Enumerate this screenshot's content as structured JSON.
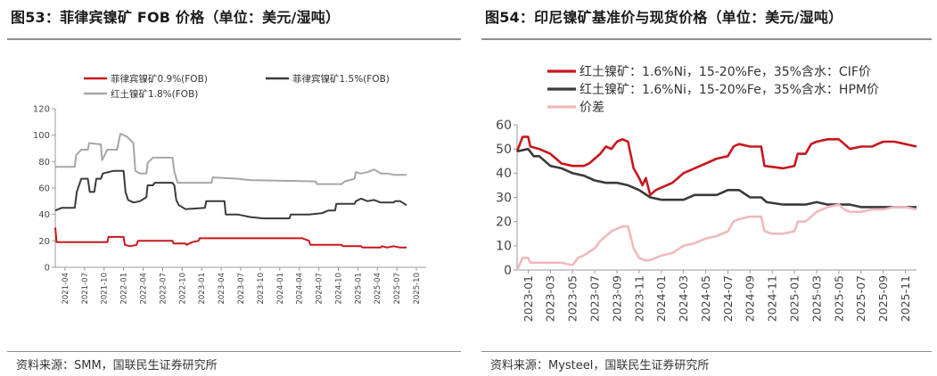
{
  "panel1": {
    "title": "图53：菲律宾镍矿 FOB 价格（单位：美元/湿吨）",
    "source": "资料来源：SMM，国联民生证券研究所"
  },
  "panel2": {
    "title": "图54：印尼镍矿基准价与现货价格（单位：美元/湿吨）",
    "source": "资料来源：Mysteel，国联民生证券研究所"
  },
  "chart_data": [
    {
      "type": "line",
      "title": "",
      "xlabel": "",
      "ylabel": "",
      "ylim": [
        0,
        120
      ],
      "yticks": [
        0,
        20,
        40,
        60,
        80,
        100,
        120
      ],
      "xlim": [
        0,
        57
      ],
      "categories": [
        "2021-04",
        "2021-07",
        "2021-10",
        "2022-01",
        "2022-04",
        "2022-07",
        "2022-10",
        "2023-01",
        "2023-04",
        "2023-07",
        "2023-10",
        "2024-01",
        "2024-04",
        "2024-07",
        "2024-10",
        "2025-01",
        "2025-04",
        "2025-07",
        "2025-10"
      ],
      "legend_placement": "top",
      "grid": false,
      "series": [
        {
          "name": "菲律宾镍矿0.9%(FOB)",
          "color": "#c8161d",
          "points": [
            [
              0,
              30
            ],
            [
              0.2,
              19
            ],
            [
              8,
              19
            ],
            [
              8.2,
              23
            ],
            [
              10.5,
              23
            ],
            [
              10.7,
              17
            ],
            [
              11.5,
              16
            ],
            [
              12.5,
              17
            ],
            [
              12.7,
              20
            ],
            [
              18,
              20
            ],
            [
              18.2,
              18
            ],
            [
              20,
              18
            ],
            [
              20.2,
              17
            ],
            [
              21,
              19
            ],
            [
              22,
              20
            ],
            [
              22.2,
              22
            ],
            [
              28,
              22
            ],
            [
              38,
              22
            ],
            [
              39,
              20
            ],
            [
              39.2,
              17
            ],
            [
              44,
              17
            ],
            [
              44.2,
              16
            ],
            [
              47,
              16
            ],
            [
              47.2,
              15
            ],
            [
              50,
              15
            ],
            [
              50.2,
              16
            ],
            [
              51,
              15
            ],
            [
              52,
              16
            ],
            [
              53,
              15
            ],
            [
              54,
              15
            ]
          ]
        },
        {
          "name": "菲律宾镍矿1.5%(FOB)",
          "color": "#3a3a3a",
          "points": [
            [
              0,
              43
            ],
            [
              1,
              45
            ],
            [
              3,
              45
            ],
            [
              3.3,
              57
            ],
            [
              4,
              67
            ],
            [
              5,
              67
            ],
            [
              5.3,
              57
            ],
            [
              6,
              57
            ],
            [
              6.3,
              67
            ],
            [
              7,
              67
            ],
            [
              7.3,
              71
            ],
            [
              9,
              73
            ],
            [
              10.5,
              73
            ],
            [
              10.8,
              57
            ],
            [
              11.2,
              51
            ],
            [
              12,
              49
            ],
            [
              13,
              50
            ],
            [
              14,
              53
            ],
            [
              14.2,
              62
            ],
            [
              15,
              62
            ],
            [
              15.3,
              64
            ],
            [
              18,
              64
            ],
            [
              18.3,
              62
            ],
            [
              18.6,
              51
            ],
            [
              19,
              47
            ],
            [
              20,
              44
            ],
            [
              23,
              45
            ],
            [
              23.2,
              50
            ],
            [
              26,
              50
            ],
            [
              26.2,
              40
            ],
            [
              28,
              40
            ],
            [
              30,
              38
            ],
            [
              32,
              37
            ],
            [
              36,
              37
            ],
            [
              36.2,
              40
            ],
            [
              39,
              40
            ],
            [
              41,
              41
            ],
            [
              42,
              43
            ],
            [
              43,
              43
            ],
            [
              43.2,
              48
            ],
            [
              44,
              48
            ],
            [
              46,
              48
            ],
            [
              46.2,
              50
            ],
            [
              47,
              52
            ],
            [
              48,
              50
            ],
            [
              49,
              51
            ],
            [
              50,
              49
            ],
            [
              52,
              49
            ],
            [
              52.2,
              50
            ],
            [
              53,
              50
            ],
            [
              54,
              47
            ]
          ]
        },
        {
          "name": "红土镍矿1.8%(FOB)",
          "color": "#a6a6a6",
          "points": [
            [
              0,
              76
            ],
            [
              3,
              76
            ],
            [
              3.2,
              85
            ],
            [
              4,
              89
            ],
            [
              5,
              89
            ],
            [
              5.2,
              94
            ],
            [
              7,
              93
            ],
            [
              7.2,
              81
            ],
            [
              8,
              89
            ],
            [
              9.5,
              89
            ],
            [
              10,
              101
            ],
            [
              11,
              99
            ],
            [
              12,
              94
            ],
            [
              12.3,
              73
            ],
            [
              13,
              71
            ],
            [
              14,
              71
            ],
            [
              14.2,
              79
            ],
            [
              15,
              83
            ],
            [
              18,
              83
            ],
            [
              18.3,
              72
            ],
            [
              18.8,
              64
            ],
            [
              24,
              64
            ],
            [
              24.2,
              68
            ],
            [
              28,
              67
            ],
            [
              30,
              66
            ],
            [
              40,
              65
            ],
            [
              40.2,
              63
            ],
            [
              44,
              63
            ],
            [
              44.5,
              65
            ],
            [
              46,
              67
            ],
            [
              46.2,
              72
            ],
            [
              47,
              71
            ],
            [
              48,
              72
            ],
            [
              49,
              74
            ],
            [
              50,
              71
            ],
            [
              51,
              71
            ],
            [
              52,
              70
            ],
            [
              54,
              70
            ]
          ]
        }
      ]
    },
    {
      "type": "line",
      "title": "",
      "xlabel": "",
      "ylabel": "",
      "ylim": [
        0,
        60
      ],
      "yticks": [
        0,
        10,
        20,
        30,
        40,
        50,
        60
      ],
      "xlim": [
        0,
        36
      ],
      "categories": [
        "2023-01",
        "2023-03",
        "2023-05",
        "2023-07",
        "2023-09",
        "2023-11",
        "2024-01",
        "2024-03",
        "2024-05",
        "2024-07",
        "2024-09",
        "2024-11",
        "2025-01",
        "2025-03",
        "2025-05",
        "2025-07",
        "2025-09",
        "2025-11"
      ],
      "legend_placement": "top",
      "grid": false,
      "series": [
        {
          "name": "红土镍矿：1.6%Ni，15-20%Fe，35%含水：CIF价",
          "color": "#c8161d",
          "points": [
            [
              0,
              49
            ],
            [
              0.5,
              55
            ],
            [
              1,
              55
            ],
            [
              1.2,
              51
            ],
            [
              2,
              50
            ],
            [
              3,
              48
            ],
            [
              3.5,
              46
            ],
            [
              4,
              44
            ],
            [
              5,
              43
            ],
            [
              6,
              43
            ],
            [
              6.5,
              44
            ],
            [
              7,
              46
            ],
            [
              7.5,
              48
            ],
            [
              8,
              51
            ],
            [
              8.5,
              50
            ],
            [
              9,
              53
            ],
            [
              9.5,
              54
            ],
            [
              10,
              53
            ],
            [
              10.5,
              42
            ],
            [
              11,
              38
            ],
            [
              11.3,
              35
            ],
            [
              11.6,
              38
            ],
            [
              12,
              31
            ],
            [
              12.5,
              33
            ],
            [
              13,
              34
            ],
            [
              14,
              36
            ],
            [
              15,
              40
            ],
            [
              16,
              42
            ],
            [
              17,
              44
            ],
            [
              18,
              46
            ],
            [
              19,
              47
            ],
            [
              19.5,
              51
            ],
            [
              20,
              52
            ],
            [
              21,
              51
            ],
            [
              22,
              51
            ],
            [
              22.3,
              43
            ],
            [
              24,
              42
            ],
            [
              25,
              43
            ],
            [
              25.3,
              48
            ],
            [
              26,
              48
            ],
            [
              26.5,
              52
            ],
            [
              27,
              53
            ],
            [
              28,
              54
            ],
            [
              29,
              54
            ],
            [
              29.5,
              52
            ],
            [
              30,
              50
            ],
            [
              31,
              51
            ],
            [
              32,
              51
            ],
            [
              32.5,
              52
            ],
            [
              33,
              53
            ],
            [
              34,
              53
            ],
            [
              35,
              52
            ],
            [
              36,
              51
            ]
          ]
        },
        {
          "name": "红土镍矿：1.6%Ni，15-20%Fe，35%含水：HPM价",
          "color": "#3a3a3a",
          "points": [
            [
              0,
              49
            ],
            [
              1,
              50
            ],
            [
              1.5,
              47
            ],
            [
              2,
              47
            ],
            [
              3,
              43
            ],
            [
              4,
              42
            ],
            [
              5,
              40
            ],
            [
              6,
              39
            ],
            [
              7,
              37
            ],
            [
              8,
              36
            ],
            [
              9,
              36
            ],
            [
              10,
              35
            ],
            [
              11,
              33
            ],
            [
              12,
              30
            ],
            [
              13,
              29
            ],
            [
              14,
              29
            ],
            [
              15,
              29
            ],
            [
              16,
              31
            ],
            [
              17,
              31
            ],
            [
              18,
              31
            ],
            [
              19,
              33
            ],
            [
              20,
              33
            ],
            [
              21,
              30
            ],
            [
              22,
              30
            ],
            [
              22.5,
              28
            ],
            [
              24,
              27
            ],
            [
              25,
              27
            ],
            [
              26,
              27
            ],
            [
              27,
              28
            ],
            [
              28,
              27
            ],
            [
              29,
              27
            ],
            [
              30,
              27
            ],
            [
              31,
              26
            ],
            [
              32,
              26
            ],
            [
              33,
              26
            ],
            [
              34,
              26
            ],
            [
              35,
              26
            ],
            [
              36,
              26
            ]
          ]
        },
        {
          "name": "价差",
          "color": "#f0b9bc",
          "points": [
            [
              0,
              0
            ],
            [
              0.5,
              5
            ],
            [
              1,
              5
            ],
            [
              1.2,
              3
            ],
            [
              3,
              3
            ],
            [
              4,
              3
            ],
            [
              5,
              2
            ],
            [
              5.5,
              5
            ],
            [
              6,
              6
            ],
            [
              7,
              9
            ],
            [
              7.5,
              12
            ],
            [
              8,
              14
            ],
            [
              8.5,
              16
            ],
            [
              9,
              17
            ],
            [
              9.5,
              18
            ],
            [
              10,
              18
            ],
            [
              10.5,
              9
            ],
            [
              11,
              5
            ],
            [
              11.5,
              4
            ],
            [
              12,
              4
            ],
            [
              12.5,
              5
            ],
            [
              13,
              6
            ],
            [
              14,
              7
            ],
            [
              15,
              10
            ],
            [
              16,
              11
            ],
            [
              17,
              13
            ],
            [
              18,
              14
            ],
            [
              19,
              16
            ],
            [
              19.5,
              20
            ],
            [
              20,
              21
            ],
            [
              21,
              22
            ],
            [
              22,
              22
            ],
            [
              22.3,
              16
            ],
            [
              23,
              15
            ],
            [
              24,
              15
            ],
            [
              25,
              16
            ],
            [
              25.3,
              20
            ],
            [
              26,
              20
            ],
            [
              27,
              24
            ],
            [
              28,
              26
            ],
            [
              29,
              27
            ],
            [
              29.5,
              25
            ],
            [
              30,
              24
            ],
            [
              31,
              24
            ],
            [
              32,
              25
            ],
            [
              33,
              25
            ],
            [
              34,
              26
            ],
            [
              35,
              26
            ],
            [
              36,
              25
            ]
          ]
        }
      ]
    }
  ]
}
